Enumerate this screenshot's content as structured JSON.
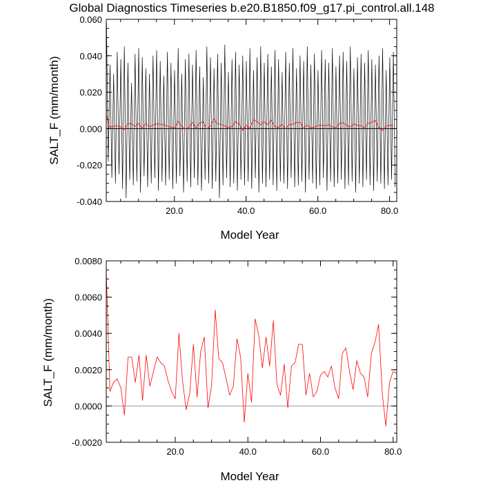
{
  "title": "Global Diagnostics Timeseries b.e20.B1850.f09_g17.pi_control.all.148",
  "colors": {
    "monthly": "#000000",
    "annual": "#ff0000",
    "zero_line_top": "#000000",
    "zero_line_bottom": "#999999"
  },
  "chart_data": [
    {
      "type": "line",
      "ylabel": "SALT_F (mm/month)",
      "xlabel": "Model Year",
      "xlim": [
        1,
        82
      ],
      "ylim": [
        -0.04,
        0.06
      ],
      "xticks": [
        {
          "value": 20,
          "label": "20.0"
        },
        {
          "value": 40,
          "label": "40.0"
        },
        {
          "value": 60,
          "label": "60.0"
        },
        {
          "value": 80,
          "label": "80.0"
        }
      ],
      "yticks": [
        {
          "value": 0.06,
          "label": "0.060"
        },
        {
          "value": 0.04,
          "label": "0.040"
        },
        {
          "value": 0.02,
          "label": "0.020"
        },
        {
          "value": 0.0,
          "label": "0.000"
        },
        {
          "value": -0.02,
          "label": "-0.020"
        },
        {
          "value": -0.04,
          "label": "-0.040"
        }
      ],
      "grid": false,
      "series": [
        {
          "style": "monthly",
          "peaks": [
            0.058,
            0.035,
            0.03,
            0.042,
            0.038,
            0.045,
            0.036,
            0.025,
            0.041,
            0.044,
            0.039,
            0.033,
            0.03,
            0.04,
            0.043,
            0.037,
            0.029,
            0.042,
            0.036,
            0.032,
            0.044,
            0.03,
            0.038,
            0.041,
            0.035,
            0.043,
            0.034,
            0.028,
            0.045,
            0.039,
            0.033,
            0.041,
            0.036,
            0.046,
            0.031,
            0.038,
            0.042,
            0.035,
            0.04,
            0.037,
            0.044,
            0.032,
            0.039,
            0.045,
            0.036,
            0.041,
            0.034,
            0.043,
            0.038,
            0.031,
            0.042,
            0.036,
            0.044,
            0.033,
            0.04,
            0.037,
            0.045,
            0.035,
            0.041,
            0.032,
            0.043,
            0.038,
            0.036,
            0.044,
            0.034,
            0.04,
            0.042,
            0.037,
            0.045,
            0.033,
            0.039,
            0.041,
            0.036,
            0.043,
            0.038,
            0.035,
            0.04,
            0.044,
            0.032,
            0.039,
            0.042
          ],
          "troughs": [
            -0.018,
            -0.027,
            -0.03,
            -0.025,
            -0.033,
            -0.038,
            -0.028,
            -0.031,
            -0.029,
            -0.035,
            -0.026,
            -0.032,
            -0.03,
            -0.027,
            -0.034,
            -0.029,
            -0.031,
            -0.028,
            -0.033,
            -0.03,
            -0.026,
            -0.035,
            -0.029,
            -0.032,
            -0.027,
            -0.031,
            -0.034,
            -0.028,
            -0.03,
            -0.033,
            -0.029,
            -0.038,
            -0.031,
            -0.027,
            -0.032,
            -0.03,
            -0.034,
            -0.028,
            -0.031,
            -0.029,
            -0.033,
            -0.027,
            -0.035,
            -0.03,
            -0.032,
            -0.028,
            -0.031,
            -0.034,
            -0.029,
            -0.03,
            -0.033,
            -0.027,
            -0.032,
            -0.031,
            -0.029,
            -0.035,
            -0.028,
            -0.03,
            -0.033,
            -0.031,
            -0.027,
            -0.034,
            -0.029,
            -0.032,
            -0.03,
            -0.028,
            -0.033,
            -0.031,
            -0.029,
            -0.035,
            -0.03,
            -0.032,
            -0.028,
            -0.031,
            -0.034,
            -0.029,
            -0.03,
            -0.033,
            -0.031,
            -0.028,
            -0.032
          ]
        },
        {
          "style": "annual",
          "x": [
            1,
            2,
            3,
            4,
            5,
            6,
            7,
            8,
            9,
            10,
            11,
            12,
            13,
            14,
            15,
            16,
            17,
            18,
            19,
            20,
            21,
            22,
            23,
            24,
            25,
            26,
            27,
            28,
            29,
            30,
            31,
            32,
            33,
            34,
            35,
            36,
            37,
            38,
            39,
            40,
            41,
            42,
            43,
            44,
            45,
            46,
            47,
            48,
            49,
            50,
            51,
            52,
            53,
            54,
            55,
            56,
            57,
            58,
            59,
            60,
            61,
            62,
            63,
            64,
            65,
            66,
            67,
            68,
            69,
            70,
            71,
            72,
            73,
            74,
            75,
            76,
            77,
            78,
            79,
            80,
            81
          ],
          "values": [
            0.0075,
            0.0008,
            0.0013,
            0.0015,
            0.001,
            -0.0005,
            0.0027,
            0.0027,
            0.0013,
            0.0028,
            0.0003,
            0.0028,
            0.0011,
            0.0019,
            0.0027,
            0.0024,
            0.0022,
            0.0014,
            0.0008,
            0.0004,
            0.004,
            0.0014,
            -0.0002,
            0.0007,
            0.0034,
            0.0005,
            0.003,
            0.0038,
            -0.0001,
            0.0011,
            0.0053,
            0.0026,
            0.0024,
            0.0015,
            0.0006,
            0.0011,
            0.0037,
            0.0027,
            -0.0009,
            0.0018,
            0.0002,
            0.0048,
            0.0039,
            0.0021,
            0.0038,
            0.0022,
            0.0047,
            0.0012,
            0.0006,
            0.0023,
            -0.0001,
            0.0022,
            0.0024,
            0.0034,
            0.0034,
            0.0006,
            0.0018,
            0.0005,
            0.0008,
            0.0017,
            0.0019,
            0.0016,
            0.0022,
            0.001,
            0.0004,
            0.0029,
            0.0032,
            0.0019,
            0.0009,
            0.0025,
            0.0018,
            0.0016,
            0.0005,
            0.0029,
            0.0035,
            0.0045,
            0.0007,
            -0.0011,
            0.0013,
            0.0019,
            0.0018
          ]
        }
      ]
    },
    {
      "type": "line",
      "ylabel": "SALT_F (mm/month)",
      "xlabel": "Model Year",
      "xlim": [
        1,
        81
      ],
      "ylim": [
        -0.002,
        0.008
      ],
      "xticks": [
        {
          "value": 20,
          "label": "20.0"
        },
        {
          "value": 40,
          "label": "40.0"
        },
        {
          "value": 60,
          "label": "60.0"
        },
        {
          "value": 80,
          "label": "80.0"
        }
      ],
      "yticks": [
        {
          "value": 0.008,
          "label": "0.0080"
        },
        {
          "value": 0.006,
          "label": "0.0060"
        },
        {
          "value": 0.004,
          "label": "0.0040"
        },
        {
          "value": 0.002,
          "label": "0.0020"
        },
        {
          "value": 0.0,
          "label": "0.0000"
        },
        {
          "value": -0.002,
          "label": "-0.0020"
        }
      ],
      "grid": false,
      "series": [
        {
          "style": "annual",
          "x": [
            1,
            2,
            3,
            4,
            5,
            6,
            7,
            8,
            9,
            10,
            11,
            12,
            13,
            14,
            15,
            16,
            17,
            18,
            19,
            20,
            21,
            22,
            23,
            24,
            25,
            26,
            27,
            28,
            29,
            30,
            31,
            32,
            33,
            34,
            35,
            36,
            37,
            38,
            39,
            40,
            41,
            42,
            43,
            44,
            45,
            46,
            47,
            48,
            49,
            50,
            51,
            52,
            53,
            54,
            55,
            56,
            57,
            58,
            59,
            60,
            61,
            62,
            63,
            64,
            65,
            66,
            67,
            68,
            69,
            70,
            71,
            72,
            73,
            74,
            75,
            76,
            77,
            78,
            79,
            80,
            81
          ],
          "values": [
            0.0075,
            0.0008,
            0.0013,
            0.0015,
            0.001,
            -0.0005,
            0.0027,
            0.0027,
            0.0013,
            0.0028,
            0.0003,
            0.0028,
            0.0011,
            0.0019,
            0.0027,
            0.0024,
            0.0022,
            0.0014,
            0.0008,
            0.0004,
            0.004,
            0.0014,
            -0.0002,
            0.0007,
            0.0034,
            0.0005,
            0.003,
            0.0038,
            -0.0001,
            0.0011,
            0.0053,
            0.0026,
            0.0024,
            0.0015,
            0.0006,
            0.0011,
            0.0037,
            0.0027,
            -0.0009,
            0.0018,
            0.0002,
            0.0048,
            0.0039,
            0.0021,
            0.0038,
            0.0022,
            0.0047,
            0.0012,
            0.0006,
            0.0023,
            -0.0001,
            0.0022,
            0.0024,
            0.0034,
            0.0034,
            0.0006,
            0.0018,
            0.0005,
            0.0008,
            0.0017,
            0.0019,
            0.0016,
            0.0022,
            0.001,
            0.0004,
            0.0029,
            0.0032,
            0.0019,
            0.0009,
            0.0025,
            0.0018,
            0.0016,
            0.0005,
            0.0029,
            0.0035,
            0.0045,
            0.0007,
            -0.0011,
            0.0013,
            0.0019,
            0.0018
          ]
        }
      ]
    }
  ]
}
